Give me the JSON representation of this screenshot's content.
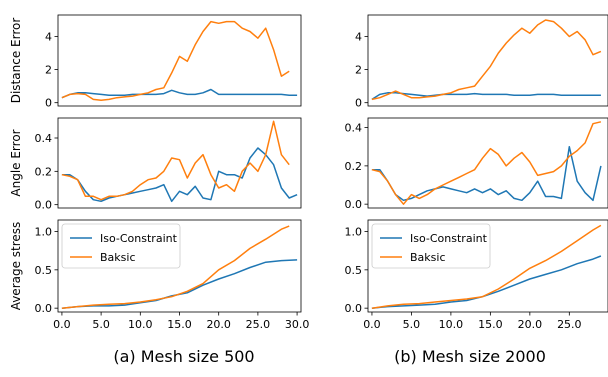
{
  "figure": {
    "captions": [
      "(a) Mesh size 500",
      "(b) Mesh size 2000"
    ]
  },
  "colors": {
    "iso": "#1f77b4",
    "baksic": "#ff7f0e",
    "axis": "#000000",
    "legend_border": "#cccccc"
  },
  "legend": {
    "iso": "Iso-Constraint",
    "baksic": "Baksic"
  },
  "chart_data": [
    {
      "type": "line",
      "panel": "a",
      "row": 0,
      "ylabel": "Distance Error",
      "xlim": [
        -0.5,
        30.5
      ],
      "ylim": [
        -0.2,
        5.3
      ],
      "yticks": [
        0,
        2,
        4
      ],
      "xticks": [],
      "series": [
        {
          "name": "Iso-Constraint",
          "x": [
            0,
            1,
            2,
            3,
            4,
            5,
            6,
            7,
            8,
            9,
            10,
            11,
            12,
            13,
            14,
            15,
            16,
            17,
            18,
            19,
            20,
            21,
            22,
            23,
            24,
            25,
            26,
            27,
            28,
            29,
            30
          ],
          "y": [
            0.3,
            0.5,
            0.6,
            0.6,
            0.55,
            0.5,
            0.45,
            0.45,
            0.45,
            0.5,
            0.5,
            0.5,
            0.5,
            0.55,
            0.75,
            0.6,
            0.5,
            0.5,
            0.6,
            0.8,
            0.5,
            0.5,
            0.5,
            0.5,
            0.5,
            0.5,
            0.5,
            0.5,
            0.5,
            0.45,
            0.45
          ]
        },
        {
          "name": "Baksic",
          "x": [
            0,
            1,
            2,
            3,
            4,
            5,
            6,
            7,
            8,
            9,
            10,
            11,
            12,
            13,
            14,
            15,
            16,
            17,
            18,
            19,
            20,
            21,
            22,
            23,
            24,
            25,
            26,
            27,
            28,
            29
          ],
          "y": [
            0.3,
            0.5,
            0.55,
            0.5,
            0.2,
            0.15,
            0.2,
            0.3,
            0.35,
            0.4,
            0.5,
            0.6,
            0.8,
            0.9,
            1.8,
            2.8,
            2.5,
            3.5,
            4.3,
            4.9,
            4.8,
            4.9,
            4.9,
            4.5,
            4.3,
            3.9,
            4.5,
            3.2,
            1.6,
            1.9
          ]
        }
      ]
    },
    {
      "type": "line",
      "panel": "a",
      "row": 1,
      "ylabel": "Angle Error",
      "xlim": [
        -0.5,
        30.5
      ],
      "ylim": [
        -0.02,
        0.52
      ],
      "yticks": [
        0.0,
        0.2,
        0.4
      ],
      "xticks": [],
      "series": [
        {
          "name": "Iso-Constraint",
          "x": [
            0,
            1,
            2,
            3,
            4,
            5,
            6,
            7,
            8,
            9,
            10,
            11,
            12,
            13,
            14,
            15,
            16,
            17,
            18,
            19,
            20,
            21,
            22,
            23,
            24,
            25,
            26,
            27,
            28,
            29,
            30
          ],
          "y": [
            0.18,
            0.18,
            0.15,
            0.08,
            0.03,
            0.02,
            0.04,
            0.05,
            0.06,
            0.07,
            0.08,
            0.09,
            0.1,
            0.12,
            0.02,
            0.08,
            0.06,
            0.11,
            0.04,
            0.03,
            0.2,
            0.18,
            0.18,
            0.16,
            0.28,
            0.34,
            0.3,
            0.24,
            0.1,
            0.04,
            0.06
          ]
        },
        {
          "name": "Baksic",
          "x": [
            0,
            1,
            2,
            3,
            4,
            5,
            6,
            7,
            8,
            9,
            10,
            11,
            12,
            13,
            14,
            15,
            16,
            17,
            18,
            19,
            20,
            21,
            22,
            23,
            24,
            25,
            26,
            27,
            28,
            29
          ],
          "y": [
            0.18,
            0.17,
            0.15,
            0.05,
            0.05,
            0.03,
            0.05,
            0.05,
            0.06,
            0.08,
            0.12,
            0.15,
            0.16,
            0.2,
            0.28,
            0.27,
            0.16,
            0.25,
            0.3,
            0.18,
            0.1,
            0.12,
            0.08,
            0.2,
            0.25,
            0.2,
            0.3,
            0.5,
            0.3,
            0.24
          ]
        }
      ]
    },
    {
      "type": "line",
      "panel": "a",
      "row": 2,
      "ylabel": "Average stress",
      "xlim": [
        -0.5,
        30.5
      ],
      "ylim": [
        -0.05,
        1.15
      ],
      "yticks": [
        0.0,
        0.5,
        1.0
      ],
      "xticks": [
        0,
        5,
        10,
        15,
        20,
        25,
        30
      ],
      "xticklabels": [
        "0.0",
        "5.0",
        "10.0",
        "15.0",
        "20.0",
        "25.0",
        "30.0"
      ],
      "series": [
        {
          "name": "Iso-Constraint",
          "x": [
            0,
            2,
            4,
            6,
            8,
            10,
            12,
            14,
            16,
            18,
            20,
            22,
            24,
            26,
            28,
            30
          ],
          "y": [
            0.0,
            0.02,
            0.03,
            0.03,
            0.04,
            0.07,
            0.1,
            0.16,
            0.2,
            0.3,
            0.38,
            0.45,
            0.53,
            0.6,
            0.62,
            0.63
          ]
        },
        {
          "name": "Baksic",
          "x": [
            0,
            2,
            4,
            6,
            8,
            10,
            12,
            14,
            16,
            18,
            20,
            22,
            24,
            26,
            28,
            29
          ],
          "y": [
            0.0,
            0.02,
            0.04,
            0.05,
            0.06,
            0.08,
            0.11,
            0.15,
            0.22,
            0.32,
            0.5,
            0.62,
            0.78,
            0.9,
            1.03,
            1.07
          ]
        }
      ]
    },
    {
      "type": "line",
      "panel": "b",
      "row": 0,
      "ylabel": "",
      "xlim": [
        -0.5,
        29.9
      ],
      "ylim": [
        -0.2,
        5.3
      ],
      "yticks": [
        0,
        2,
        4
      ],
      "xticks": [],
      "series": [
        {
          "name": "Iso-Constraint",
          "x": [
            0,
            1,
            2,
            3,
            4,
            5,
            6,
            7,
            8,
            9,
            10,
            11,
            12,
            13,
            14,
            15,
            16,
            17,
            18,
            19,
            20,
            21,
            22,
            23,
            24,
            25,
            26,
            27,
            28,
            29
          ],
          "y": [
            0.2,
            0.5,
            0.6,
            0.6,
            0.55,
            0.5,
            0.45,
            0.4,
            0.45,
            0.5,
            0.5,
            0.5,
            0.5,
            0.55,
            0.5,
            0.5,
            0.5,
            0.5,
            0.45,
            0.45,
            0.45,
            0.5,
            0.5,
            0.5,
            0.45,
            0.45,
            0.45,
            0.45,
            0.45,
            0.45
          ]
        },
        {
          "name": "Baksic",
          "x": [
            0,
            1,
            2,
            3,
            4,
            5,
            6,
            7,
            8,
            9,
            10,
            11,
            12,
            13,
            14,
            15,
            16,
            17,
            18,
            19,
            20,
            21,
            22,
            23,
            24,
            25,
            26,
            27,
            28,
            29
          ],
          "y": [
            0.2,
            0.3,
            0.5,
            0.7,
            0.5,
            0.3,
            0.3,
            0.35,
            0.4,
            0.5,
            0.6,
            0.8,
            0.9,
            1.0,
            1.6,
            2.2,
            3.0,
            3.6,
            4.1,
            4.5,
            4.2,
            4.7,
            5.0,
            4.9,
            4.5,
            4.0,
            4.3,
            3.8,
            2.9,
            3.1
          ]
        }
      ]
    },
    {
      "type": "line",
      "panel": "b",
      "row": 1,
      "ylabel": "",
      "xlim": [
        -0.5,
        29.9
      ],
      "ylim": [
        -0.02,
        0.45
      ],
      "yticks": [
        0.0,
        0.2,
        0.4
      ],
      "xticks": [],
      "series": [
        {
          "name": "Iso-Constraint",
          "x": [
            0,
            1,
            2,
            3,
            4,
            5,
            6,
            7,
            8,
            9,
            10,
            11,
            12,
            13,
            14,
            15,
            16,
            17,
            18,
            19,
            20,
            21,
            22,
            23,
            24,
            25,
            26,
            27,
            28,
            29
          ],
          "y": [
            0.18,
            0.18,
            0.12,
            0.05,
            0.02,
            0.03,
            0.05,
            0.07,
            0.08,
            0.09,
            0.08,
            0.07,
            0.06,
            0.08,
            0.06,
            0.08,
            0.05,
            0.07,
            0.03,
            0.02,
            0.06,
            0.12,
            0.04,
            0.04,
            0.03,
            0.3,
            0.12,
            0.06,
            0.02,
            0.2
          ]
        },
        {
          "name": "Baksic",
          "x": [
            0,
            1,
            2,
            3,
            4,
            5,
            6,
            7,
            8,
            9,
            10,
            11,
            12,
            13,
            14,
            15,
            16,
            17,
            18,
            19,
            20,
            21,
            22,
            23,
            24,
            25,
            26,
            27,
            28,
            29
          ],
          "y": [
            0.18,
            0.17,
            0.12,
            0.05,
            0.0,
            0.05,
            0.03,
            0.05,
            0.08,
            0.1,
            0.12,
            0.14,
            0.16,
            0.18,
            0.24,
            0.29,
            0.26,
            0.2,
            0.24,
            0.27,
            0.22,
            0.15,
            0.16,
            0.17,
            0.2,
            0.25,
            0.28,
            0.32,
            0.42,
            0.43
          ]
        }
      ]
    },
    {
      "type": "line",
      "panel": "b",
      "row": 2,
      "ylabel": "",
      "xlim": [
        -0.5,
        29.9
      ],
      "ylim": [
        -0.05,
        1.15
      ],
      "yticks": [
        0.0,
        0.5,
        1.0
      ],
      "xticks": [
        0,
        5,
        10,
        15,
        20,
        25
      ],
      "xticklabels": [
        "0.0",
        "5.0",
        "10.0",
        "15.0",
        "20.0",
        "25.0"
      ],
      "series": [
        {
          "name": "Iso-Constraint",
          "x": [
            0,
            2,
            4,
            6,
            8,
            10,
            12,
            14,
            16,
            18,
            20,
            22,
            24,
            26,
            28,
            29
          ],
          "y": [
            0.0,
            0.02,
            0.03,
            0.04,
            0.05,
            0.08,
            0.1,
            0.15,
            0.22,
            0.3,
            0.38,
            0.44,
            0.5,
            0.58,
            0.64,
            0.68
          ]
        },
        {
          "name": "Baksic",
          "x": [
            0,
            2,
            4,
            6,
            8,
            10,
            12,
            14,
            16,
            18,
            20,
            22,
            24,
            26,
            28,
            29
          ],
          "y": [
            0.0,
            0.03,
            0.05,
            0.06,
            0.08,
            0.1,
            0.12,
            0.15,
            0.25,
            0.38,
            0.52,
            0.62,
            0.74,
            0.88,
            1.02,
            1.08
          ]
        }
      ]
    }
  ]
}
